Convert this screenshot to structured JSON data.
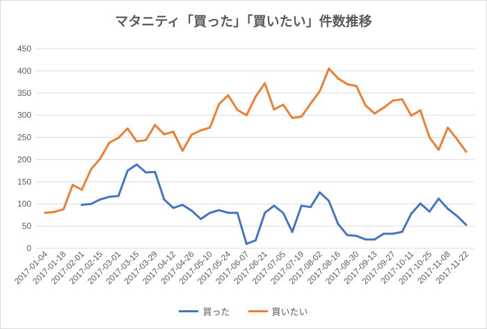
{
  "chart_data": {
    "type": "line",
    "title": "マタニティ「買った」「買いたい」件数推移",
    "xlabel": "",
    "ylabel": "",
    "ylim": [
      0,
      450
    ],
    "yticks": [
      0,
      50,
      100,
      150,
      200,
      250,
      300,
      350,
      400,
      450
    ],
    "grid": true,
    "legend": "bottom",
    "x": [
      "2017-01-04",
      "2017-01-11",
      "2017-01-18",
      "2017-01-25",
      "2017-02-01",
      "2017-02-08",
      "2017-02-15",
      "2017-02-22",
      "2017-03-01",
      "2017-03-08",
      "2017-03-15",
      "2017-03-22",
      "2017-03-29",
      "2017-04-05",
      "2017-04-12",
      "2017-04-19",
      "2017-04-26",
      "2017-05-03",
      "2017-05-10",
      "2017-05-17",
      "2017-05-24",
      "2017-05-31",
      "2017-06-07",
      "2017-06-14",
      "2017-06-21",
      "2017-06-28",
      "2017-07-05",
      "2017-07-12",
      "2017-07-19",
      "2017-07-26",
      "2017-08-02",
      "2017-08-09",
      "2017-08-16",
      "2017-08-23",
      "2017-08-30",
      "2017-09-06",
      "2017-09-13",
      "2017-09-20",
      "2017-09-27",
      "2017-10-04",
      "2017-10-11",
      "2017-10-18",
      "2017-10-25",
      "2017-11-01",
      "2017-11-08",
      "2017-11-15",
      "2017-11-22"
    ],
    "xtick_labels": [
      "2017-01-04",
      "2017-01-18",
      "2017-02-01",
      "2017-02-15",
      "2017-03-01",
      "2017-03-15",
      "2017-03-29",
      "2017-04-12",
      "2017-04-26",
      "2017-05-10",
      "2017-05-24",
      "2017-06-07",
      "2017-06-21",
      "2017-07-05",
      "2017-07-19",
      "2017-08-02",
      "2017-08-16",
      "2017-08-30",
      "2017-09-13",
      "2017-09-27",
      "2017-10-11",
      "2017-10-25",
      "2017-11-08",
      "2017-11-22"
    ],
    "series": [
      {
        "name": "買った",
        "color": "#4472c4",
        "values": [
          null,
          null,
          null,
          null,
          98,
          100,
          110,
          116,
          118,
          175,
          189,
          171,
          172,
          110,
          91,
          98,
          85,
          66,
          80,
          86,
          80,
          80,
          10,
          18,
          80,
          96,
          80,
          37,
          96,
          93,
          126,
          107,
          55,
          30,
          28,
          20,
          20,
          33,
          33,
          37,
          78,
          101,
          83,
          112,
          89,
          73,
          53
        ]
      },
      {
        "name": "買いたい",
        "color": "#ed7d31",
        "values": [
          80,
          82,
          88,
          143,
          132,
          178,
          202,
          238,
          249,
          270,
          241,
          244,
          278,
          257,
          263,
          220,
          256,
          266,
          272,
          325,
          345,
          312,
          300,
          342,
          372,
          313,
          324,
          294,
          297,
          326,
          354,
          405,
          383,
          370,
          366,
          322,
          304,
          317,
          333,
          336,
          299,
          311,
          250,
          222,
          272,
          246,
          218
        ]
      }
    ]
  }
}
